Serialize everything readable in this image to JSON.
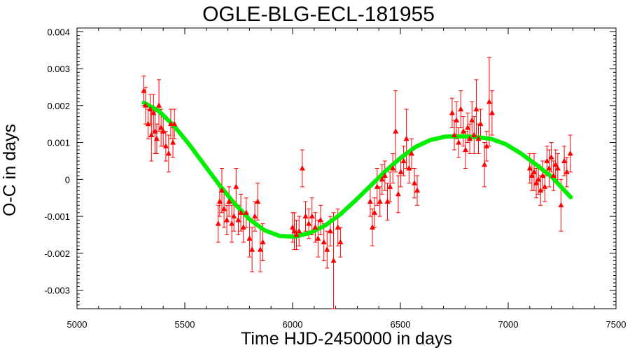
{
  "chart_data": {
    "type": "scatter",
    "title": "OGLE-BLG-ECL-181955",
    "xlabel": "Time HJD-2450000 in days",
    "ylabel": "O-C in days",
    "xlim": [
      5000,
      7500
    ],
    "ylim": [
      -0.0035,
      0.0041
    ],
    "x_ticks": [
      5000,
      5500,
      6000,
      6500,
      7000,
      7500
    ],
    "x_tick_labels": [
      "5000",
      "5500",
      "6000",
      "6500",
      "7000",
      "7500"
    ],
    "y_ticks": [
      -0.003,
      -0.002,
      -0.001,
      0,
      0.001,
      0.002,
      0.003,
      0.004
    ],
    "y_tick_labels": [
      "-0.003",
      "-0.002",
      "-0.001",
      "0",
      "0.001",
      "0.002",
      "0.003",
      "0.004"
    ],
    "grid": false,
    "legend": "none",
    "colors": {
      "points": "#ff0000",
      "fit": "#00ee00",
      "axes": "#000000"
    },
    "series": [
      {
        "type": "scatter",
        "marker": "triangle",
        "error_bars": true,
        "points": [
          {
            "x": 5310,
            "y": 0.0024,
            "err": 0.0004
          },
          {
            "x": 5318,
            "y": 0.002,
            "err": 0.0005
          },
          {
            "x": 5330,
            "y": 0.0015,
            "err": 0.0004
          },
          {
            "x": 5340,
            "y": 0.0019,
            "err": 0.0004
          },
          {
            "x": 5345,
            "y": 0.0012,
            "err": 0.0007
          },
          {
            "x": 5355,
            "y": 0.0018,
            "err": 0.0005
          },
          {
            "x": 5362,
            "y": 0.0013,
            "err": 0.0006
          },
          {
            "x": 5370,
            "y": 0.0011,
            "err": 0.0004
          },
          {
            "x": 5380,
            "y": 0.002,
            "err": 0.0007
          },
          {
            "x": 5390,
            "y": 0.0014,
            "err": 0.0005
          },
          {
            "x": 5400,
            "y": 0.0013,
            "err": 0.0004
          },
          {
            "x": 5412,
            "y": 0.0009,
            "err": 0.0004
          },
          {
            "x": 5425,
            "y": 0.0007,
            "err": 0.0005
          },
          {
            "x": 5435,
            "y": 0.0015,
            "err": 0.0004
          },
          {
            "x": 5445,
            "y": 0.001,
            "err": 0.0004
          },
          {
            "x": 5452,
            "y": 0.0015,
            "err": 0.0004
          },
          {
            "x": 5655,
            "y": -0.0012,
            "err": 0.0005
          },
          {
            "x": 5662,
            "y": -0.0006,
            "err": 0.0004
          },
          {
            "x": 5672,
            "y": -0.0003,
            "err": 0.0006
          },
          {
            "x": 5682,
            "y": -0.0008,
            "err": 0.0005
          },
          {
            "x": 5695,
            "y": -0.0011,
            "err": 0.0004
          },
          {
            "x": 5705,
            "y": -0.0006,
            "err": 0.0004
          },
          {
            "x": 5718,
            "y": -0.0012,
            "err": 0.0005
          },
          {
            "x": 5728,
            "y": -0.001,
            "err": 0.0004
          },
          {
            "x": 5738,
            "y": -0.0002,
            "err": 0.0005
          },
          {
            "x": 5748,
            "y": -0.0011,
            "err": 0.0004
          },
          {
            "x": 5760,
            "y": -0.0009,
            "err": 0.0005
          },
          {
            "x": 5772,
            "y": -0.0013,
            "err": 0.0004
          },
          {
            "x": 5785,
            "y": -0.0009,
            "err": 0.0004
          },
          {
            "x": 5800,
            "y": -0.0016,
            "err": 0.0005
          },
          {
            "x": 5812,
            "y": -0.0019,
            "err": 0.0006
          },
          {
            "x": 5825,
            "y": -0.001,
            "err": 0.0004
          },
          {
            "x": 5838,
            "y": -0.0006,
            "err": 0.0005
          },
          {
            "x": 5850,
            "y": -0.0019,
            "err": 0.0006
          },
          {
            "x": 5862,
            "y": -0.0017,
            "err": 0.0005
          },
          {
            "x": 6000,
            "y": -0.0013,
            "err": 0.0004
          },
          {
            "x": 6008,
            "y": -0.0014,
            "err": 0.0005
          },
          {
            "x": 6018,
            "y": -0.0015,
            "err": 0.0004
          },
          {
            "x": 6030,
            "y": -0.0014,
            "err": 0.0004
          },
          {
            "x": 6045,
            "y": 0.0003,
            "err": 0.0005
          },
          {
            "x": 6060,
            "y": -0.001,
            "err": 0.0004
          },
          {
            "x": 6075,
            "y": -0.0012,
            "err": 0.0004
          },
          {
            "x": 6090,
            "y": -0.001,
            "err": 0.0005
          },
          {
            "x": 6105,
            "y": -0.0013,
            "err": 0.0004
          },
          {
            "x": 6118,
            "y": -0.0016,
            "err": 0.0005
          },
          {
            "x": 6130,
            "y": -0.0011,
            "err": 0.0004
          },
          {
            "x": 6145,
            "y": -0.0017,
            "err": 0.0005
          },
          {
            "x": 6160,
            "y": -0.0019,
            "err": 0.0005
          },
          {
            "x": 6175,
            "y": -0.0014,
            "err": 0.0004
          },
          {
            "x": 6190,
            "y": -0.0022,
            "err": 0.0013
          },
          {
            "x": 6210,
            "y": -0.0013,
            "err": 0.0005
          },
          {
            "x": 6222,
            "y": -0.0017,
            "err": 0.0004
          },
          {
            "x": 6360,
            "y": -0.0006,
            "err": 0.0004
          },
          {
            "x": 6370,
            "y": -0.0013,
            "err": 0.0005
          },
          {
            "x": 6380,
            "y": -0.0009,
            "err": 0.0004
          },
          {
            "x": 6392,
            "y": -0.0002,
            "err": 0.0005
          },
          {
            "x": 6405,
            "y": -0.0006,
            "err": 0.0004
          },
          {
            "x": 6415,
            "y": 0.0,
            "err": 0.0004
          },
          {
            "x": 6428,
            "y": 0.0001,
            "err": 0.0004
          },
          {
            "x": 6440,
            "y": -0.0006,
            "err": 0.0005
          },
          {
            "x": 6452,
            "y": -0.0002,
            "err": 0.0004
          },
          {
            "x": 6465,
            "y": 0.0003,
            "err": 0.0004
          },
          {
            "x": 6478,
            "y": 0.0013,
            "err": 0.0011
          },
          {
            "x": 6490,
            "y": -0.0004,
            "err": 0.0005
          },
          {
            "x": 6502,
            "y": 0.0002,
            "err": 0.0004
          },
          {
            "x": 6515,
            "y": 0.0005,
            "err": 0.0004
          },
          {
            "x": 6528,
            "y": 0.0011,
            "err": 0.0008
          },
          {
            "x": 6540,
            "y": 0.0003,
            "err": 0.0004
          },
          {
            "x": 6552,
            "y": 0.0007,
            "err": 0.0004
          },
          {
            "x": 6565,
            "y": -0.0001,
            "err": 0.0004
          },
          {
            "x": 6578,
            "y": -0.0003,
            "err": 0.0004
          },
          {
            "x": 6740,
            "y": 0.0018,
            "err": 0.0004
          },
          {
            "x": 6750,
            "y": 0.0012,
            "err": 0.0004
          },
          {
            "x": 6760,
            "y": 0.0016,
            "err": 0.0005
          },
          {
            "x": 6770,
            "y": 0.001,
            "err": 0.0004
          },
          {
            "x": 6780,
            "y": 0.0019,
            "err": 0.0005
          },
          {
            "x": 6792,
            "y": 0.0013,
            "err": 0.0004
          },
          {
            "x": 6802,
            "y": 0.0008,
            "err": 0.0005
          },
          {
            "x": 6812,
            "y": 0.0014,
            "err": 0.0004
          },
          {
            "x": 6822,
            "y": 0.0011,
            "err": 0.0004
          },
          {
            "x": 6832,
            "y": 0.0016,
            "err": 0.0005
          },
          {
            "x": 6842,
            "y": 0.0012,
            "err": 0.0005
          },
          {
            "x": 6852,
            "y": 0.0019,
            "err": 0.0008
          },
          {
            "x": 6862,
            "y": 0.0011,
            "err": 0.0004
          },
          {
            "x": 6872,
            "y": 0.0015,
            "err": 0.0004
          },
          {
            "x": 6890,
            "y": 0.0004,
            "err": 0.0006
          },
          {
            "x": 6900,
            "y": 0.0009,
            "err": 0.0004
          },
          {
            "x": 6912,
            "y": 0.0021,
            "err": 0.0012
          },
          {
            "x": 6925,
            "y": 0.0018,
            "err": 0.0006
          },
          {
            "x": 7100,
            "y": 0.0003,
            "err": 0.0004
          },
          {
            "x": 7110,
            "y": 0.0001,
            "err": 0.0004
          },
          {
            "x": 7120,
            "y": 0.0002,
            "err": 0.0005
          },
          {
            "x": 7130,
            "y": -0.0001,
            "err": 0.0004
          },
          {
            "x": 7140,
            "y": 0.0,
            "err": 0.0004
          },
          {
            "x": 7150,
            "y": -0.0003,
            "err": 0.0004
          },
          {
            "x": 7160,
            "y": 0.0001,
            "err": 0.0004
          },
          {
            "x": 7170,
            "y": -0.0002,
            "err": 0.0004
          },
          {
            "x": 7180,
            "y": 0.0005,
            "err": 0.0004
          },
          {
            "x": 7190,
            "y": 0.0003,
            "err": 0.0005
          },
          {
            "x": 7200,
            "y": 0.0006,
            "err": 0.0004
          },
          {
            "x": 7210,
            "y": 0.0001,
            "err": 0.0004
          },
          {
            "x": 7220,
            "y": 0.0004,
            "err": 0.0004
          },
          {
            "x": 7230,
            "y": 0.0003,
            "err": 0.0004
          },
          {
            "x": 7245,
            "y": -0.0007,
            "err": 0.0007
          },
          {
            "x": 7260,
            "y": 0.0005,
            "err": 0.0004
          },
          {
            "x": 7272,
            "y": 0.0002,
            "err": 0.0004
          },
          {
            "x": 7288,
            "y": 0.0007,
            "err": 0.0005
          }
        ]
      },
      {
        "type": "line",
        "x": [
          5310,
          5380,
          5450,
          5520,
          5590,
          5660,
          5730,
          5800,
          5870,
          5940,
          6010,
          6080,
          6150,
          6220,
          6290,
          6360,
          6430,
          6500,
          6570,
          6640,
          6710,
          6780,
          6850,
          6920,
          6990,
          7060,
          7130,
          7200,
          7290
        ],
        "y": [
          0.00208,
          0.00185,
          0.00145,
          0.00095,
          0.0004,
          -0.00015,
          -0.00065,
          -0.00108,
          -0.00138,
          -0.00153,
          -0.00155,
          -0.00145,
          -0.00125,
          -0.00095,
          -0.00058,
          -0.00018,
          0.00022,
          0.00058,
          0.00088,
          0.00107,
          0.00116,
          0.00117,
          0.00115,
          0.0011,
          0.00095,
          0.0007,
          0.0004,
          8e-05,
          -0.00048
        ]
      }
    ]
  }
}
